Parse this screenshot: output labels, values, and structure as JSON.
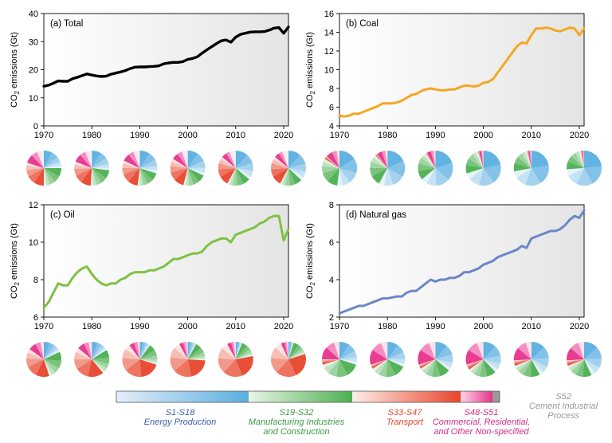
{
  "colors": {
    "total": "#000000",
    "coal": "#f5a623",
    "oil": "#7dc242",
    "gas": "#6b87c6",
    "energy": "#5aaee0",
    "manufacturing": "#4caf50",
    "transport": "#e8452c",
    "commercial": "#e8328c",
    "cement": "#999999"
  },
  "chart_data": [
    {
      "id": "total",
      "type": "line",
      "title": "(a) Total",
      "ylabel": "CO2 emissions (Gt)",
      "ylim": [
        0,
        40
      ],
      "yticks": [
        0,
        10,
        20,
        30,
        40
      ],
      "xlim": [
        1970,
        2021
      ],
      "xticks": [
        1970,
        1980,
        1990,
        2000,
        2010,
        2020
      ],
      "x": [
        1970,
        1971,
        1972,
        1973,
        1974,
        1975,
        1976,
        1977,
        1978,
        1979,
        1980,
        1981,
        1982,
        1983,
        1984,
        1985,
        1986,
        1987,
        1988,
        1989,
        1990,
        1991,
        1992,
        1993,
        1994,
        1995,
        1996,
        1997,
        1998,
        1999,
        2000,
        2001,
        2002,
        2003,
        2004,
        2005,
        2006,
        2007,
        2008,
        2009,
        2010,
        2011,
        2012,
        2013,
        2014,
        2015,
        2016,
        2017,
        2018,
        2019,
        2020,
        2021
      ],
      "y": [
        14.1,
        14.5,
        15.2,
        16.0,
        15.9,
        15.9,
        16.8,
        17.3,
        17.9,
        18.5,
        18.1,
        17.8,
        17.6,
        17.7,
        18.4,
        18.8,
        19.2,
        19.7,
        20.4,
        20.9,
        21.0,
        21.0,
        21.1,
        21.2,
        21.4,
        22.1,
        22.4,
        22.6,
        22.6,
        22.9,
        23.7,
        24.0,
        24.6,
        25.9,
        27.1,
        28.2,
        29.3,
        30.3,
        30.6,
        29.8,
        31.6,
        32.6,
        33.0,
        33.4,
        33.5,
        33.5,
        33.6,
        34.1,
        34.8,
        35.0,
        33.0,
        35.2
      ]
    },
    {
      "id": "coal",
      "type": "line",
      "title": "(b) Coal",
      "ylabel": "CO2 emissions (Gt)",
      "ylim": [
        4,
        16
      ],
      "yticks": [
        4,
        6,
        8,
        10,
        12,
        14,
        16
      ],
      "xlim": [
        1970,
        2021
      ],
      "xticks": [
        1970,
        1980,
        1990,
        2000,
        2010,
        2020
      ],
      "x": [
        1970,
        1971,
        1972,
        1973,
        1974,
        1975,
        1976,
        1977,
        1978,
        1979,
        1980,
        1981,
        1982,
        1983,
        1984,
        1985,
        1986,
        1987,
        1988,
        1989,
        1990,
        1991,
        1992,
        1993,
        1994,
        1995,
        1996,
        1997,
        1998,
        1999,
        2000,
        2001,
        2002,
        2003,
        2004,
        2005,
        2006,
        2007,
        2008,
        2009,
        2010,
        2011,
        2012,
        2013,
        2014,
        2015,
        2016,
        2017,
        2018,
        2019,
        2020,
        2021
      ],
      "y": [
        5.1,
        5.0,
        5.1,
        5.3,
        5.3,
        5.5,
        5.7,
        5.9,
        6.1,
        6.4,
        6.4,
        6.4,
        6.5,
        6.7,
        7.0,
        7.3,
        7.4,
        7.7,
        7.9,
        8.0,
        7.9,
        7.8,
        7.8,
        7.9,
        7.9,
        8.1,
        8.3,
        8.3,
        8.2,
        8.3,
        8.6,
        8.7,
        9.0,
        9.7,
        10.4,
        11.1,
        11.8,
        12.5,
        12.9,
        12.8,
        13.7,
        14.4,
        14.4,
        14.5,
        14.4,
        14.2,
        14.1,
        14.3,
        14.5,
        14.4,
        13.7,
        14.4
      ]
    },
    {
      "id": "oil",
      "type": "line",
      "title": "(c) Oil",
      "ylabel": "CO2 emissions (Gt)",
      "ylim": [
        6,
        12
      ],
      "yticks": [
        6,
        8,
        10,
        12
      ],
      "xlim": [
        1970,
        2021
      ],
      "xticks": [
        1970,
        1980,
        1990,
        2000,
        2010,
        2020
      ],
      "x": [
        1970,
        1971,
        1972,
        1973,
        1974,
        1975,
        1976,
        1977,
        1978,
        1979,
        1980,
        1981,
        1982,
        1983,
        1984,
        1985,
        1986,
        1987,
        1988,
        1989,
        1990,
        1991,
        1992,
        1993,
        1994,
        1995,
        1996,
        1997,
        1998,
        1999,
        2000,
        2001,
        2002,
        2003,
        2004,
        2005,
        2006,
        2007,
        2008,
        2009,
        2010,
        2011,
        2012,
        2013,
        2014,
        2015,
        2016,
        2017,
        2018,
        2019,
        2020,
        2021
      ],
      "y": [
        6.5,
        6.8,
        7.3,
        7.8,
        7.7,
        7.7,
        8.1,
        8.4,
        8.6,
        8.7,
        8.3,
        8.0,
        7.8,
        7.7,
        7.8,
        7.8,
        8.0,
        8.1,
        8.3,
        8.4,
        8.4,
        8.4,
        8.5,
        8.5,
        8.6,
        8.7,
        8.9,
        9.1,
        9.1,
        9.2,
        9.3,
        9.4,
        9.4,
        9.5,
        9.8,
        10.0,
        10.1,
        10.2,
        10.2,
        10.0,
        10.4,
        10.5,
        10.6,
        10.7,
        10.8,
        11.0,
        11.1,
        11.3,
        11.4,
        11.4,
        10.1,
        10.7
      ]
    },
    {
      "id": "gas",
      "type": "line",
      "title": "(d) Natural gas",
      "ylabel": "CO2 emissions (Gt)",
      "ylim": [
        2,
        8
      ],
      "yticks": [
        2,
        4,
        6,
        8
      ],
      "xlim": [
        1970,
        2021
      ],
      "xticks": [
        1970,
        1980,
        1990,
        2000,
        2010,
        2020
      ],
      "x": [
        1970,
        1971,
        1972,
        1973,
        1974,
        1975,
        1976,
        1977,
        1978,
        1979,
        1980,
        1981,
        1982,
        1983,
        1984,
        1985,
        1986,
        1987,
        1988,
        1989,
        1990,
        1991,
        1992,
        1993,
        1994,
        1995,
        1996,
        1997,
        1998,
        1999,
        2000,
        2001,
        2002,
        2003,
        2004,
        2005,
        2006,
        2007,
        2008,
        2009,
        2010,
        2011,
        2012,
        2013,
        2014,
        2015,
        2016,
        2017,
        2018,
        2019,
        2020,
        2021
      ],
      "y": [
        2.2,
        2.3,
        2.4,
        2.5,
        2.6,
        2.6,
        2.7,
        2.8,
        2.9,
        3.0,
        3.0,
        3.05,
        3.1,
        3.1,
        3.3,
        3.4,
        3.4,
        3.6,
        3.8,
        4.0,
        3.9,
        4.0,
        4.0,
        4.1,
        4.1,
        4.2,
        4.4,
        4.4,
        4.5,
        4.6,
        4.8,
        4.9,
        5.0,
        5.2,
        5.3,
        5.4,
        5.5,
        5.6,
        5.8,
        5.7,
        6.2,
        6.3,
        6.4,
        6.5,
        6.6,
        6.6,
        6.7,
        6.9,
        7.2,
        7.4,
        7.3,
        7.7
      ]
    }
  ],
  "pie_data": {
    "years": [
      1970,
      1980,
      1990,
      2000,
      2010,
      2021
    ],
    "total": [
      [
        0.25,
        0.25,
        0.3,
        0.17,
        0.03
      ],
      [
        0.27,
        0.24,
        0.3,
        0.16,
        0.03
      ],
      [
        0.3,
        0.22,
        0.3,
        0.15,
        0.03
      ],
      [
        0.32,
        0.22,
        0.3,
        0.13,
        0.03
      ],
      [
        0.36,
        0.22,
        0.28,
        0.1,
        0.04
      ],
      [
        0.37,
        0.21,
        0.28,
        0.1,
        0.04
      ]
    ],
    "coal": [
      [
        0.52,
        0.32,
        0.03,
        0.13,
        0.0
      ],
      [
        0.58,
        0.3,
        0.02,
        0.1,
        0.0
      ],
      [
        0.64,
        0.27,
        0.01,
        0.08,
        0.0
      ],
      [
        0.7,
        0.25,
        0.01,
        0.04,
        0.0
      ],
      [
        0.72,
        0.24,
        0.01,
        0.03,
        0.0
      ],
      [
        0.74,
        0.23,
        0.01,
        0.02,
        0.0
      ]
    ],
    "oil": [
      [
        0.18,
        0.27,
        0.4,
        0.15,
        0.0
      ],
      [
        0.16,
        0.23,
        0.47,
        0.14,
        0.0
      ],
      [
        0.1,
        0.2,
        0.6,
        0.1,
        0.0
      ],
      [
        0.08,
        0.18,
        0.66,
        0.08,
        0.0
      ],
      [
        0.06,
        0.16,
        0.7,
        0.08,
        0.0
      ],
      [
        0.05,
        0.15,
        0.73,
        0.07,
        0.0
      ]
    ],
    "gas": [
      [
        0.3,
        0.4,
        0.05,
        0.25,
        0.0
      ],
      [
        0.32,
        0.34,
        0.04,
        0.3,
        0.0
      ],
      [
        0.36,
        0.3,
        0.04,
        0.3,
        0.0
      ],
      [
        0.38,
        0.27,
        0.05,
        0.3,
        0.0
      ],
      [
        0.42,
        0.27,
        0.05,
        0.26,
        0.0
      ],
      [
        0.43,
        0.26,
        0.05,
        0.26,
        0.0
      ]
    ]
  },
  "legend": {
    "energy": {
      "code": "S1-S18",
      "name": "Energy Production"
    },
    "manufacturing": {
      "code": "S19-S32",
      "name_line1": "Manufacturing Industries",
      "name_line2": "and Construction"
    },
    "transport": {
      "code": "S33-S47",
      "name": "Transport"
    },
    "commercial": {
      "code": "S48-S51",
      "name_line1": "Commercial, Residential,",
      "name_line2": "and Other Non-specified"
    },
    "cement": {
      "code": "S52",
      "name_line1": "Cement Industrial",
      "name_line2": "Process"
    }
  }
}
